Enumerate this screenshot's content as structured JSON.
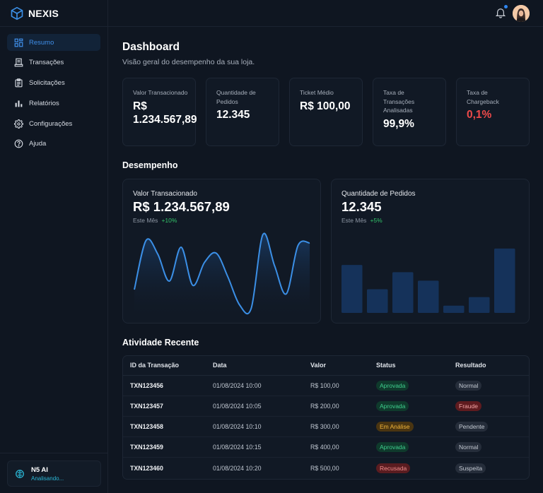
{
  "brand": {
    "name": "NEXIS",
    "logo_icon": "cube-icon"
  },
  "sidebar": {
    "items": [
      {
        "label": "Resumo",
        "icon": "grid-icon",
        "active": true
      },
      {
        "label": "Transações",
        "icon": "receipt-icon",
        "active": false
      },
      {
        "label": "Solicitações",
        "icon": "clipboard-icon",
        "active": false
      },
      {
        "label": "Relatórios",
        "icon": "bar-chart-icon",
        "active": false
      },
      {
        "label": "Configurações",
        "icon": "gear-icon",
        "active": false
      },
      {
        "label": "Ajuda",
        "icon": "help-circle-icon",
        "active": false
      }
    ],
    "ai_card": {
      "title": "N5 AI",
      "status": "Analisando...",
      "icon": "brain-icon"
    }
  },
  "topbar": {
    "notification_icon": "bell-icon",
    "has_unread": true,
    "avatar": "user-avatar"
  },
  "page": {
    "title": "Dashboard",
    "subtitle": "Visão geral do desempenho da sua loja."
  },
  "kpis": [
    {
      "label": "Valor Transacionado",
      "value": "R$ 1.234.567,89",
      "tone": "default"
    },
    {
      "label": "Quantidade de Pedidos",
      "value": "12.345",
      "tone": "default"
    },
    {
      "label": "Ticket Médio",
      "value": "R$ 100,00",
      "tone": "default"
    },
    {
      "label": "Taxa de Transações Analisadas",
      "value": "99,9%",
      "tone": "default"
    },
    {
      "label": "Taxa de Chargeback",
      "value": "0,1%",
      "tone": "negative"
    }
  ],
  "performance": {
    "section_title": "Desempenho",
    "value_card": {
      "label": "Valor Transacionado",
      "value": "R$ 1.234.567,89",
      "period": "Este Mês",
      "delta": "+10%"
    },
    "orders_card": {
      "label": "Quantidade de Pedidos",
      "value": "12.345",
      "period": "Este Mês",
      "delta": "+5%"
    }
  },
  "chart_data": [
    {
      "type": "area",
      "title": "Valor Transacionado",
      "xlabel": "",
      "ylabel": "",
      "grid": false,
      "y_range": [
        0,
        100
      ],
      "x": [
        0,
        1,
        2,
        3,
        4,
        5,
        6,
        7,
        8,
        9,
        10,
        11,
        12,
        13,
        14,
        15
      ],
      "values": [
        30,
        88,
        72,
        40,
        80,
        35,
        62,
        73,
        45,
        12,
        8,
        95,
        58,
        25,
        82,
        85
      ],
      "color": "#3b8fe6"
    },
    {
      "type": "bar",
      "title": "Quantidade de Pedidos",
      "xlabel": "",
      "ylabel": "",
      "grid": false,
      "y_range": [
        0,
        100
      ],
      "categories": [
        "1",
        "2",
        "3",
        "4",
        "5",
        "6",
        "7"
      ],
      "values": [
        73,
        36,
        62,
        49,
        11,
        24,
        98
      ],
      "color": "#15325a"
    }
  ],
  "activity": {
    "section_title": "Atividade Recente",
    "columns": [
      "ID da Transação",
      "Data",
      "Valor",
      "Status",
      "Resultado"
    ],
    "rows": [
      {
        "id": "TXN123456",
        "date": "01/08/2024 10:00",
        "amount": "R$ 100,00",
        "status": "Aprovada",
        "status_kind": "aprovada",
        "result": "Normal",
        "result_kind": "neutral"
      },
      {
        "id": "TXN123457",
        "date": "01/08/2024 10:05",
        "amount": "R$ 200,00",
        "status": "Aprovada",
        "status_kind": "aprovada",
        "result": "Fraude",
        "result_kind": "fraude"
      },
      {
        "id": "TXN123458",
        "date": "01/08/2024 10:10",
        "amount": "R$ 300,00",
        "status": "Em Análise",
        "status_kind": "analise",
        "result": "Pendente",
        "result_kind": "neutral"
      },
      {
        "id": "TXN123459",
        "date": "01/08/2024 10:15",
        "amount": "R$ 400,00",
        "status": "Aprovada",
        "status_kind": "aprovada",
        "result": "Normal",
        "result_kind": "neutral"
      },
      {
        "id": "TXN123460",
        "date": "01/08/2024 10:20",
        "amount": "R$ 500,00",
        "status": "Recusada",
        "status_kind": "recusada",
        "result": "Suspeita",
        "result_kind": "neutral"
      }
    ]
  },
  "colors": {
    "accent": "#3f8ee8",
    "positive": "#33c46a",
    "negative": "#ef4a4a",
    "background": "#0f1621",
    "card": "#111925"
  }
}
